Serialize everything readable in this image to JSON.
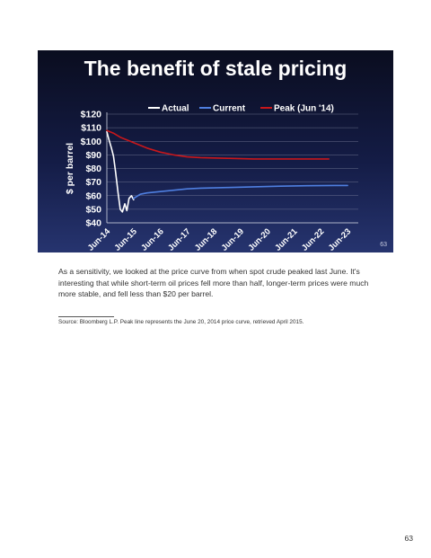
{
  "slide": {
    "title": "The benefit of stale pricing",
    "slide_number": "63"
  },
  "chart_data": {
    "type": "line",
    "ylabel": "$ per barrel",
    "xlabel": "",
    "ylim": [
      40,
      120
    ],
    "yticks": [
      "$40",
      "$50",
      "$60",
      "$70",
      "$80",
      "$90",
      "$100",
      "$110",
      "$120"
    ],
    "xticks": [
      "Jun-14",
      "Jun-15",
      "Jun-16",
      "Jun-17",
      "Jun-18",
      "Jun-19",
      "Jun-20",
      "Jun-21",
      "Jun-22",
      "Jun-23"
    ],
    "grid": true,
    "legend": "top",
    "series": [
      {
        "name": "Actual",
        "color": "#ffffff",
        "x": [
          2014.5,
          2014.58,
          2014.67,
          2014.75,
          2014.83,
          2014.92,
          2015.0,
          2015.08,
          2015.17,
          2015.25,
          2015.33,
          2015.42,
          2015.5
        ],
        "y": [
          107,
          101,
          95,
          89,
          77,
          62,
          50,
          48,
          54,
          49,
          58,
          60,
          57
        ]
      },
      {
        "name": "Current",
        "color": "#4f7fe0",
        "x": [
          2015.5,
          2015.75,
          2016.0,
          2016.5,
          2017.0,
          2017.5,
          2018.0,
          2019.0,
          2020.0,
          2021.0,
          2022.0,
          2023.0,
          2023.5
        ],
        "y": [
          58,
          61,
          62,
          63,
          64,
          65,
          65.5,
          66,
          66.5,
          67,
          67.3,
          67.5,
          67.5
        ]
      },
      {
        "name": "Peak (Jun '14)",
        "color": "#c8171b",
        "x": [
          2014.5,
          2014.75,
          2015.0,
          2015.5,
          2016.0,
          2016.5,
          2017.0,
          2017.5,
          2018.0,
          2019.0,
          2020.0,
          2021.0,
          2022.0,
          2022.8
        ],
        "y": [
          108,
          106,
          103,
          99,
          95,
          92,
          90,
          88.5,
          88,
          87.5,
          87,
          87,
          87,
          87
        ]
      }
    ]
  },
  "caption": "As a sensitivity, we looked at the price curve from when spot crude peaked last June.  It's interesting that while short-term oil prices fell more than half, longer-term prices were much more stable, and fell less than $20 per barrel.",
  "source": "Source: Bloomberg L.P.  Peak line represents the June 20, 2014 price curve, retrieved April 2015.",
  "page_number": "63"
}
